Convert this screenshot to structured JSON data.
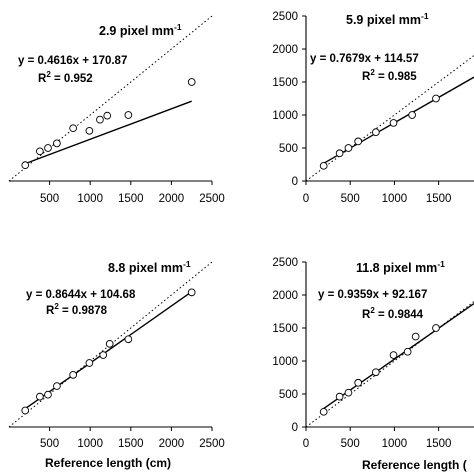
{
  "chart_data": [
    {
      "type": "scatter",
      "title": "2.9 pixel mm",
      "title_superscript": "-1",
      "equation": "y = 0.4616x + 170.87",
      "r2_label": "R",
      "r2_superscript": "2",
      "r2_value": " = 0.952",
      "xlabel": "",
      "ylabel": "",
      "xlim": [
        0,
        2500
      ],
      "ylim": [
        0,
        2500
      ],
      "xticks": [
        "500",
        "1000",
        "1500",
        "2000",
        "2500"
      ],
      "yticks": [],
      "fit": {
        "slope": 0.4616,
        "intercept": 170.87,
        "x_range": [
          200,
          2250
        ]
      },
      "reference_line": "dotted 1:1",
      "points": {
        "x": [
          200,
          380,
          480,
          590,
          790,
          990,
          1120,
          1210,
          1470,
          2250
        ],
        "y": [
          240,
          450,
          500,
          570,
          800,
          760,
          930,
          990,
          1000,
          1500
        ]
      }
    },
    {
      "type": "scatter",
      "title": "5.9 pixel mm",
      "title_superscript": "-1",
      "equation": "y = 0.7679x + 114.57",
      "r2_label": "R",
      "r2_superscript": "2",
      "r2_value": " = 0.985",
      "xlabel": "",
      "ylabel": "",
      "xlim": [
        0,
        1900
      ],
      "ylim": [
        0,
        2500
      ],
      "xticks": [
        "0",
        "500",
        "1000",
        "1500"
      ],
      "yticks": [
        "0",
        "500",
        "1000",
        "1500",
        "2000",
        "2500"
      ],
      "fit": {
        "slope": 0.7679,
        "intercept": 114.57,
        "x_range": [
          200,
          1900
        ]
      },
      "reference_line": "dotted 1:1",
      "points": {
        "x": [
          200,
          380,
          480,
          590,
          790,
          990,
          1200,
          1470
        ],
        "y": [
          230,
          420,
          500,
          600,
          740,
          880,
          1000,
          1250
        ]
      }
    },
    {
      "type": "scatter",
      "title": "8.8 pixel mm",
      "title_superscript": "-1",
      "equation": "y = 0.8644x + 104.68",
      "r2_label": "R",
      "r2_superscript": "2",
      "r2_value": " = 0.9878",
      "xlabel": "Reference length (cm)",
      "ylabel": "",
      "xlim": [
        0,
        2500
      ],
      "ylim": [
        0,
        2500
      ],
      "xticks": [
        "500",
        "1000",
        "1500",
        "2000",
        "2500"
      ],
      "yticks": [],
      "fit": {
        "slope": 0.8644,
        "intercept": 104.68,
        "x_range": [
          200,
          2250
        ]
      },
      "reference_line": "dotted 1:1",
      "points": {
        "x": [
          200,
          380,
          480,
          590,
          790,
          990,
          1160,
          1240,
          1470,
          2250
        ],
        "y": [
          250,
          460,
          490,
          620,
          790,
          970,
          1090,
          1260,
          1330,
          2040
        ]
      }
    },
    {
      "type": "scatter",
      "title": "11.8 pixel mm",
      "title_superscript": "-1",
      "equation": "y = 0.9359x + 92.167",
      "r2_label": "R",
      "r2_superscript": "2",
      "r2_value": " = 0.9844",
      "xlabel": "Reference length (",
      "ylabel": "",
      "xlim": [
        0,
        1900
      ],
      "ylim": [
        0,
        2500
      ],
      "xticks": [
        "0",
        "500",
        "1000",
        "1500"
      ],
      "yticks": [
        "0",
        "500",
        "1000",
        "1500",
        "2000",
        "2500"
      ],
      "fit": {
        "slope": 0.9359,
        "intercept": 92.167,
        "x_range": [
          200,
          1900
        ]
      },
      "reference_line": "dotted 1:1",
      "points": {
        "x": [
          200,
          380,
          480,
          590,
          790,
          990,
          1150,
          1240,
          1470
        ],
        "y": [
          230,
          460,
          520,
          670,
          830,
          1090,
          1140,
          1370,
          1500
        ]
      }
    }
  ]
}
